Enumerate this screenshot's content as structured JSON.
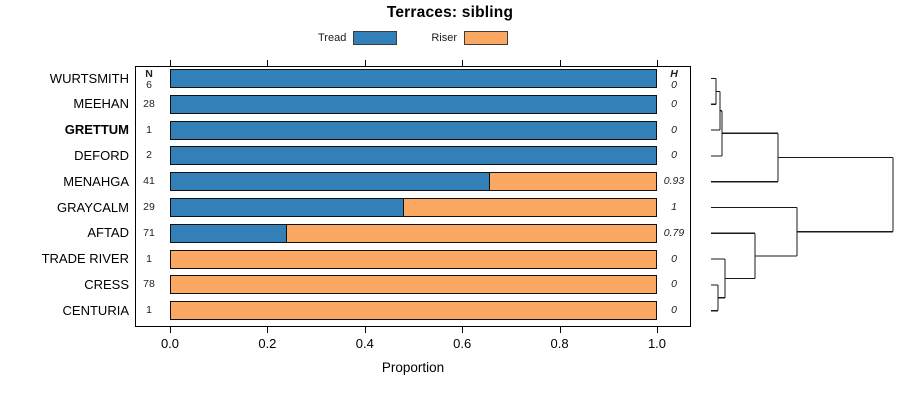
{
  "chart_data": {
    "type": "bar",
    "orientation": "horizontal-stacked",
    "title": "Terraces: sibling",
    "xlabel": "Proportion",
    "xlim": [
      0,
      1
    ],
    "x_ticks": [
      0.0,
      0.2,
      0.4,
      0.6,
      0.8,
      1.0
    ],
    "grid": false,
    "legend_position": "top-center",
    "legend": [
      {
        "label": "Tread",
        "color": "#3380B8"
      },
      {
        "label": "Riser",
        "color": "#FBA862"
      }
    ],
    "annotation_columns": {
      "n_header": "N",
      "h_header": "H"
    },
    "categories": [
      "WURTSMITH",
      "MEEHAN",
      "GRETTUM",
      "DEFORD",
      "MENAHGA",
      "GRAYCALM",
      "AFTAD",
      "TRADE RIVER",
      "CRESS",
      "CENTURIA"
    ],
    "rows": [
      {
        "name": "WURTSMITH",
        "bold": false,
        "n": "6",
        "tread": 1.0,
        "riser": 0.0,
        "h": "0"
      },
      {
        "name": "MEEHAN",
        "bold": false,
        "n": "28",
        "tread": 1.0,
        "riser": 0.0,
        "h": "0"
      },
      {
        "name": "GRETTUM",
        "bold": true,
        "n": "1",
        "tread": 1.0,
        "riser": 0.0,
        "h": "0"
      },
      {
        "name": "DEFORD",
        "bold": false,
        "n": "2",
        "tread": 1.0,
        "riser": 0.0,
        "h": "0"
      },
      {
        "name": "MENAHGA",
        "bold": false,
        "n": "41",
        "tread": 0.658,
        "riser": 0.342,
        "h": "0.93"
      },
      {
        "name": "GRAYCALM",
        "bold": false,
        "n": "29",
        "tread": 0.481,
        "riser": 0.519,
        "h": "1"
      },
      {
        "name": "AFTAD",
        "bold": false,
        "n": "71",
        "tread": 0.24,
        "riser": 0.76,
        "h": "0.79"
      },
      {
        "name": "TRADE RIVER",
        "bold": false,
        "n": "1",
        "tread": 0.0,
        "riser": 1.0,
        "h": "0"
      },
      {
        "name": "CRESS",
        "bold": false,
        "n": "78",
        "tread": 0.0,
        "riser": 1.0,
        "h": "0"
      },
      {
        "name": "CENTURIA",
        "bold": false,
        "n": "1",
        "tread": 0.0,
        "riser": 1.0,
        "h": "0"
      }
    ],
    "dendrogram": {
      "height": 1.0,
      "children": [
        {
          "height": 0.368,
          "children": [
            {
              "height": 0.06,
              "children": [
                {
                  "height": 0.049,
                  "children": [
                    {
                      "height": 0.027,
                      "children": [
                        {
                          "leaf": "WURTSMITH",
                          "row": 0
                        },
                        {
                          "leaf": "MEEHAN",
                          "row": 1
                        }
                      ]
                    },
                    {
                      "leaf": "GRETTUM",
                      "row": 2
                    }
                  ]
                },
                {
                  "leaf": "DEFORD",
                  "row": 3
                }
              ]
            },
            {
              "leaf": "MENAHGA",
              "row": 4
            }
          ]
        },
        {
          "height": 0.473,
          "children": [
            {
              "leaf": "GRAYCALM",
              "row": 5
            },
            {
              "height": 0.242,
              "children": [
                {
                  "leaf": "AFTAD",
                  "row": 6
                },
                {
                  "height": 0.077,
                  "children": [
                    {
                      "leaf": "TRADE RIVER",
                      "row": 7
                    },
                    {
                      "height": 0.038,
                      "children": [
                        {
                          "leaf": "CRESS",
                          "row": 8
                        },
                        {
                          "leaf": "CENTURIA",
                          "row": 9
                        }
                      ]
                    }
                  ]
                }
              ]
            }
          ]
        }
      ]
    }
  }
}
